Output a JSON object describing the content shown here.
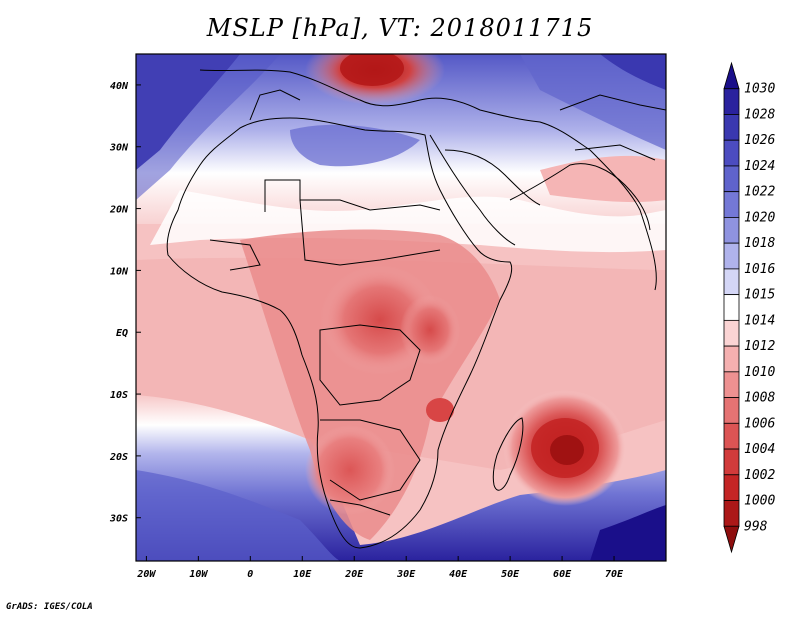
{
  "title": "MSLP [hPa], VT: 2018011715",
  "credit": "GrADS: IGES/COLA",
  "map": {
    "lat_labels": [
      "40N",
      "30N",
      "20N",
      "10N",
      "EQ",
      "10S",
      "20S",
      "30S"
    ],
    "lon_labels": [
      "20W",
      "10W",
      "0",
      "10E",
      "20E",
      "30E",
      "40E",
      "50E",
      "60E",
      "70E"
    ],
    "lat_values": [
      40,
      30,
      20,
      10,
      0,
      -10,
      -20,
      -30
    ],
    "lon_values": [
      -20,
      -10,
      0,
      10,
      20,
      30,
      40,
      50,
      60,
      70
    ],
    "lon_range": [
      -22,
      80
    ],
    "lat_range": [
      -37,
      45
    ]
  },
  "colorbar": {
    "levels": [
      "1030",
      "1028",
      "1026",
      "1024",
      "1022",
      "1020",
      "1018",
      "1016",
      "1015",
      "1014",
      "1012",
      "1010",
      "1008",
      "1006",
      "1004",
      "1002",
      "1000",
      "998"
    ],
    "colors": [
      "#1a0f8a",
      "#2a229e",
      "#3a38b0",
      "#4c4cc0",
      "#5f63cc",
      "#7478d6",
      "#8f93e0",
      "#b0b3ec",
      "#d4d6f6",
      "#ffffff",
      "#fbd4d4",
      "#f5b0b0",
      "#ee9191",
      "#e57373",
      "#dc5454",
      "#d23b3b",
      "#c42525",
      "#ac1818",
      "#8e0e0e"
    ]
  }
}
